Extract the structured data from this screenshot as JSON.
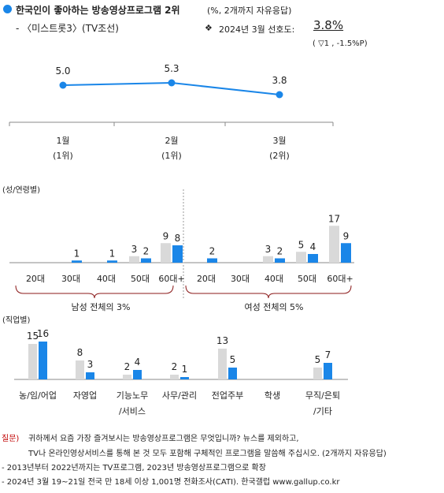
{
  "header": {
    "bullet_color": "#1a86e8",
    "title": "한국인이 좋아하는 방송영상프로그램 2위",
    "title_note": "(%, 2개까지 자유응답)",
    "subtitle": "- 〈미스트롯3〉(TV조선)",
    "pref_marker": "❖",
    "pref_label": "2024년 3월 선호도:",
    "pref_value": "3.8%",
    "pref_change": "( ▽1 , -1.5%P)"
  },
  "chart_data": [
    {
      "type": "line",
      "id": "trend",
      "color": "#1a86e8",
      "categories": [
        "1월",
        "2월",
        "3월"
      ],
      "ranks": [
        "(1위)",
        "(1위)",
        "(2위)"
      ],
      "values": [
        5.0,
        5.3,
        3.8
      ],
      "value_labels": [
        "5.0",
        "5.3",
        "3.8"
      ]
    },
    {
      "type": "bar",
      "id": "gender-age",
      "section_label": "(성/연령별)",
      "colors": {
        "prev": "#d9d9d9",
        "current": "#1a86e8"
      },
      "groups": [
        {
          "name": "남성",
          "summary": "남성 전체의 3%",
          "categories": [
            "20대",
            "30대",
            "40대",
            "50대",
            "60대+"
          ],
          "prev": [
            0,
            0,
            0,
            3,
            9
          ],
          "current": [
            0,
            1,
            1,
            2,
            8
          ],
          "prev_labels": [
            "",
            "",
            "",
            "3",
            "9"
          ],
          "current_labels": [
            "",
            "1",
            "1",
            "2",
            "8"
          ]
        },
        {
          "name": "여성",
          "summary": "여성 전체의 5%",
          "categories": [
            "20대",
            "30대",
            "40대",
            "50대",
            "60대+"
          ],
          "prev": [
            0,
            0,
            3,
            5,
            17
          ],
          "current": [
            2,
            0,
            2,
            4,
            9
          ],
          "prev_labels": [
            "",
            "",
            "3",
            "5",
            "17"
          ],
          "current_labels": [
            "2",
            "",
            "2",
            "4",
            "9"
          ]
        }
      ]
    },
    {
      "type": "bar",
      "id": "occupation",
      "section_label": "(직업별)",
      "colors": {
        "prev": "#d9d9d9",
        "current": "#1a86e8"
      },
      "categories": [
        [
          "농/임/어업"
        ],
        [
          "자영업"
        ],
        [
          "기능노무",
          "/서비스"
        ],
        [
          "사무/관리"
        ],
        [
          "전업주부"
        ],
        [
          "학생"
        ],
        [
          "무직/은퇴",
          "/기타"
        ]
      ],
      "prev": [
        15,
        8,
        2,
        2,
        13,
        0,
        5
      ],
      "current": [
        16,
        3,
        4,
        1,
        5,
        0,
        7
      ],
      "prev_labels": [
        "15",
        "8",
        "2",
        "2",
        "13",
        "",
        "5"
      ],
      "current_labels": [
        "16",
        "3",
        "4",
        "1",
        "5",
        "",
        "7"
      ]
    }
  ],
  "footer": {
    "q_label": "질문)",
    "q_line1": "귀하께서 요즘 가장 즐겨보시는 방송영상프로그램은 무엇입니까? 뉴스를 제외하고,",
    "q_line2": "TV나 온라인영상서비스를 통해 본 것 모두 포함해 구체적인 프로그램을 말씀해 주십시오. (2개까지 자유응답)",
    "note1": "- 2013년부터 2022년까지는 TV프로그램, 2023년 방송영상프로그램으로 확장",
    "note2": "- 2024년 3월 19~21일 전국 만 18세 이상 1,001명 전화조사(CATI). 한국갤럽 www.gallup.co.kr"
  }
}
